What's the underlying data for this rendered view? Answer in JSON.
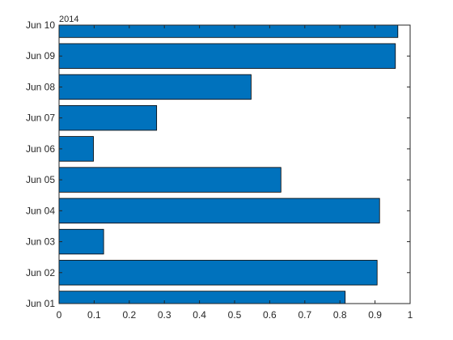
{
  "chart_data": {
    "type": "bar",
    "orientation": "horizontal",
    "year_label": "2014",
    "categories": [
      "Jun 01",
      "Jun 02",
      "Jun 03",
      "Jun 04",
      "Jun 05",
      "Jun 06",
      "Jun 07",
      "Jun 08",
      "Jun 09",
      "Jun 10"
    ],
    "values": [
      0.815,
      0.906,
      0.127,
      0.913,
      0.632,
      0.098,
      0.278,
      0.547,
      0.958,
      0.965
    ],
    "xlim": [
      0,
      1
    ],
    "xticks": [
      "0",
      "0.1",
      "0.2",
      "0.3",
      "0.4",
      "0.5",
      "0.6",
      "0.7",
      "0.8",
      "0.9",
      "1"
    ],
    "grid": false,
    "bar_color": "#0072BD",
    "edge_color": "#000000"
  }
}
